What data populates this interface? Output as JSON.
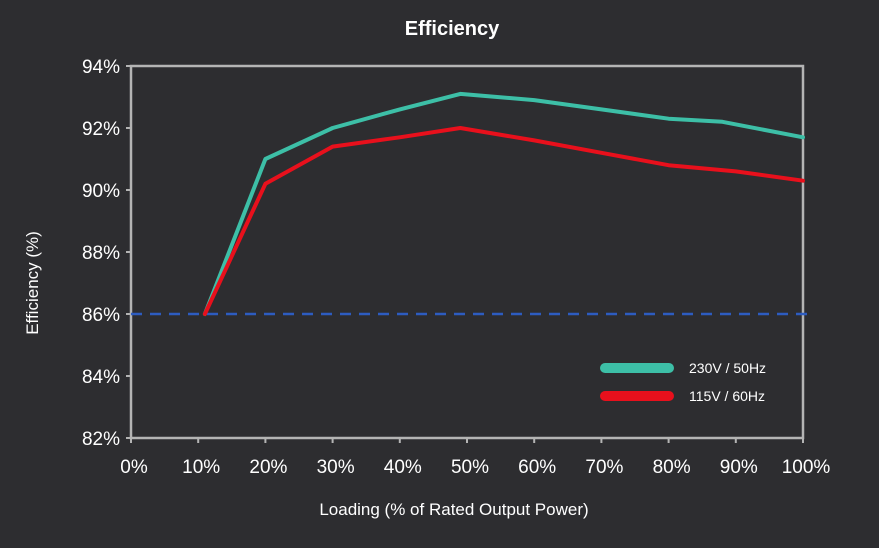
{
  "chart_data": {
    "type": "line",
    "title": "Efficiency",
    "xlabel": "Loading (% of Rated Output Power)",
    "ylabel": "Efficiency (%)",
    "xlim": [
      0,
      100
    ],
    "ylim": [
      82,
      94
    ],
    "x_ticks": [
      "0%",
      "10%",
      "20%",
      "30%",
      "40%",
      "50%",
      "60%",
      "70%",
      "80%",
      "90%",
      "100%"
    ],
    "y_ticks": [
      "82%",
      "84%",
      "86%",
      "88%",
      "90%",
      "92%",
      "94%"
    ],
    "grid": false,
    "legend_position": "bottom-right",
    "series": [
      {
        "name": "230V / 50Hz",
        "color": "#3dbfa7",
        "points": [
          [
            11,
            86.0
          ],
          [
            20,
            91.0
          ],
          [
            30,
            92.0
          ],
          [
            40,
            92.6
          ],
          [
            49,
            93.1
          ],
          [
            60,
            92.9
          ],
          [
            70,
            92.6
          ],
          [
            80,
            92.3
          ],
          [
            88,
            92.2
          ],
          [
            100,
            91.7
          ]
        ]
      },
      {
        "name": "115V / 60Hz",
        "color": "#e8101c",
        "points": [
          [
            11,
            86.0
          ],
          [
            20,
            90.2
          ],
          [
            30,
            91.4
          ],
          [
            40,
            91.7
          ],
          [
            49,
            92.0
          ],
          [
            60,
            91.6
          ],
          [
            70,
            91.2
          ],
          [
            80,
            90.8
          ],
          [
            90,
            90.6
          ],
          [
            100,
            90.3
          ]
        ]
      }
    ],
    "reference_line": {
      "y": 86,
      "color": "#2d5cc0",
      "style": "dashed"
    },
    "background_color": "#2d2d30",
    "axis_color": "#b4b4b4"
  }
}
